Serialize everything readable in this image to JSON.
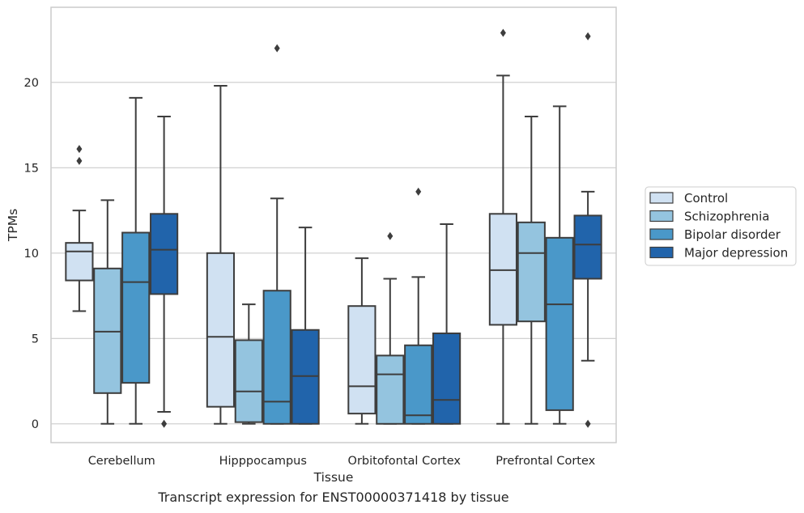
{
  "caption": "Transcript expression for ENST00000371418 by tissue",
  "chart_data": {
    "type": "boxplot",
    "xlabel": "Tissue",
    "ylabel": "TPMs",
    "ylim": [
      -1.1,
      24.4
    ],
    "yticks": [
      0,
      5,
      10,
      15,
      20
    ],
    "grid": "horizontal",
    "legend_position": "right",
    "categories": [
      "Cerebellum",
      "Hipppocampus",
      "Orbitofontal Cortex",
      "Prefrontal Cortex"
    ],
    "series": [
      {
        "name": "Control",
        "color": "#d0e1f2",
        "boxes": [
          {
            "whislo": 6.6,
            "q1": 8.4,
            "med": 10.1,
            "q3": 10.6,
            "whishi": 12.5,
            "fliers": [
              15.4,
              16.1
            ]
          },
          {
            "whislo": 0,
            "q1": 1.0,
            "med": 5.1,
            "q3": 10.0,
            "whishi": 19.8,
            "fliers": []
          },
          {
            "whislo": 0,
            "q1": 0.6,
            "med": 2.2,
            "q3": 6.9,
            "whishi": 9.7,
            "fliers": []
          },
          {
            "whislo": 0,
            "q1": 5.8,
            "med": 9.0,
            "q3": 12.3,
            "whishi": 20.4,
            "fliers": [
              22.9
            ]
          }
        ]
      },
      {
        "name": "Schizophrenia",
        "color": "#94c4df",
        "boxes": [
          {
            "whislo": 0,
            "q1": 1.8,
            "med": 5.4,
            "q3": 9.1,
            "whishi": 13.1,
            "fliers": []
          },
          {
            "whislo": 0,
            "q1": 0.1,
            "med": 1.9,
            "q3": 4.9,
            "whishi": 7.0,
            "fliers": []
          },
          {
            "whislo": 0,
            "q1": 0,
            "med": 2.9,
            "q3": 4.0,
            "whishi": 8.5,
            "fliers": [
              11.0
            ]
          },
          {
            "whislo": 0,
            "q1": 6.0,
            "med": 10.0,
            "q3": 11.8,
            "whishi": 18.0,
            "fliers": []
          }
        ]
      },
      {
        "name": "Bipolar disorder",
        "color": "#4a98c9",
        "boxes": [
          {
            "whislo": 0,
            "q1": 2.4,
            "med": 8.3,
            "q3": 11.2,
            "whishi": 19.1,
            "fliers": []
          },
          {
            "whislo": 0,
            "q1": 0,
            "med": 1.3,
            "q3": 7.8,
            "whishi": 13.2,
            "fliers": [
              22.0
            ]
          },
          {
            "whislo": 0,
            "q1": 0,
            "med": 0.5,
            "q3": 4.6,
            "whishi": 8.6,
            "fliers": [
              13.6
            ]
          },
          {
            "whislo": 0,
            "q1": 0.8,
            "med": 7.0,
            "q3": 10.9,
            "whishi": 18.6,
            "fliers": []
          }
        ]
      },
      {
        "name": "Major depression",
        "color": "#2164ab",
        "boxes": [
          {
            "whislo": 0.7,
            "q1": 7.6,
            "med": 10.2,
            "q3": 12.3,
            "whishi": 18.0,
            "fliers": [
              0
            ]
          },
          {
            "whislo": 0,
            "q1": 0,
            "med": 2.8,
            "q3": 5.5,
            "whishi": 11.5,
            "fliers": []
          },
          {
            "whislo": 0,
            "q1": 0,
            "med": 1.4,
            "q3": 5.3,
            "whishi": 11.7,
            "fliers": []
          },
          {
            "whislo": 3.7,
            "q1": 8.5,
            "med": 10.5,
            "q3": 12.2,
            "whishi": 13.6,
            "fliers": [
              0,
              22.7
            ]
          }
        ]
      }
    ]
  }
}
